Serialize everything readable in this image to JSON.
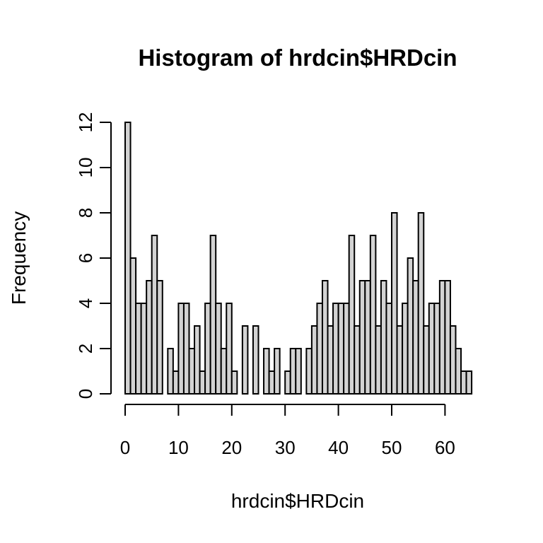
{
  "chart_data": {
    "type": "bar",
    "title": "Histogram of hrdcin$HRDcin",
    "xlabel": "hrdcin$HRDcin",
    "ylabel": "Frequency",
    "bin_width": 1,
    "bin_start": 0,
    "values": [
      12,
      6,
      4,
      4,
      5,
      7,
      5,
      0,
      2,
      1,
      4,
      4,
      2,
      3,
      1,
      4,
      7,
      4,
      2,
      4,
      1,
      0,
      3,
      0,
      3,
      0,
      2,
      1,
      2,
      0,
      1,
      2,
      2,
      0,
      2,
      3,
      4,
      5,
      3,
      4,
      4,
      4,
      7,
      3,
      5,
      5,
      7,
      3,
      5,
      4,
      8,
      3,
      4,
      6,
      5,
      8,
      3,
      4,
      4,
      5,
      5,
      3,
      2,
      1,
      1
    ],
    "xlim": [
      0,
      65
    ],
    "ylim": [
      0,
      12
    ],
    "x_ticks": [
      "0",
      "10",
      "20",
      "30",
      "40",
      "50",
      "60"
    ],
    "y_ticks": [
      "0",
      "2",
      "4",
      "6",
      "8",
      "10",
      "12"
    ],
    "bar_fill": "#d3d3d3",
    "bar_stroke": "#000000",
    "grid": false
  }
}
